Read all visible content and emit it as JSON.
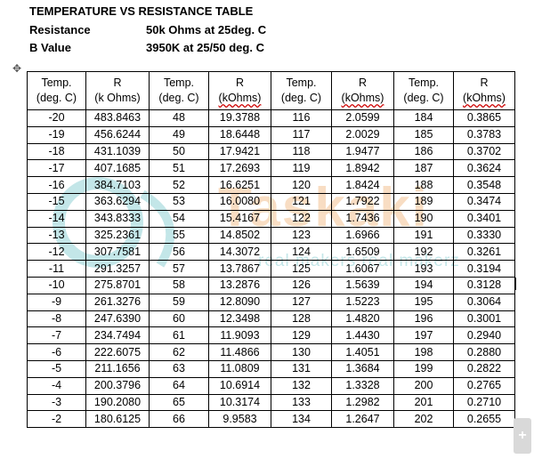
{
  "header": {
    "title": "TEMPERATURE VS RESISTANCE TABLE",
    "resistance_label": "Resistance",
    "resistance_value": "50k Ohms at 25deg. C",
    "bvalue_label": "B Value",
    "bvalue_value": "3950K at 25/50 deg. C"
  },
  "table": {
    "headers": [
      {
        "top": "Temp.",
        "bottom": "(deg. C)"
      },
      {
        "top": "R",
        "bottom": "(k Ohms)"
      },
      {
        "top": "Temp.",
        "bottom": "(deg. C)"
      },
      {
        "top": "R",
        "bottom": "(kOhms)"
      },
      {
        "top": "Temp.",
        "bottom": "(deg. C)"
      },
      {
        "top": "R",
        "bottom": "(kOhms)"
      },
      {
        "top": "Temp.",
        "bottom": "(deg. C)"
      },
      {
        "top": "R",
        "bottom": "(kOhms)"
      }
    ],
    "rows": [
      [
        "-20",
        "483.8463",
        "48",
        "19.3788",
        "116",
        "2.0599",
        "184",
        "0.3865"
      ],
      [
        "-19",
        "456.6244",
        "49",
        "18.6448",
        "117",
        "2.0029",
        "185",
        "0.3783"
      ],
      [
        "-18",
        "431.1039",
        "50",
        "17.9421",
        "118",
        "1.9477",
        "186",
        "0.3702"
      ],
      [
        "-17",
        "407.1685",
        "51",
        "17.2693",
        "119",
        "1.8942",
        "187",
        "0.3624"
      ],
      [
        "-16",
        "384.7103",
        "52",
        "16.6251",
        "120",
        "1.8424",
        "188",
        "0.3548"
      ],
      [
        "-15",
        "363.6294",
        "53",
        "16.0080",
        "121",
        "1.7922",
        "189",
        "0.3474"
      ],
      [
        "-14",
        "343.8333",
        "54",
        "15.4167",
        "122",
        "1.7436",
        "190",
        "0.3401"
      ],
      [
        "-13",
        "325.2361",
        "55",
        "14.8502",
        "123",
        "1.6966",
        "191",
        "0.3330"
      ],
      [
        "-12",
        "307.7581",
        "56",
        "14.3072",
        "124",
        "1.6509",
        "192",
        "0.3261"
      ],
      [
        "-11",
        "291.3257",
        "57",
        "13.7867",
        "125",
        "1.6067",
        "193",
        "0.3194"
      ],
      [
        "-10",
        "275.8701",
        "58",
        "13.2876",
        "126",
        "1.5639",
        "194",
        "0.3128"
      ],
      [
        "-9",
        "261.3276",
        "59",
        "12.8090",
        "127",
        "1.5223",
        "195",
        "0.3064"
      ],
      [
        "-8",
        "247.6390",
        "60",
        "12.3498",
        "128",
        "1.4820",
        "196",
        "0.3001"
      ],
      [
        "-7",
        "234.7494",
        "61",
        "11.9093",
        "129",
        "1.4430",
        "197",
        "0.2940"
      ],
      [
        "-6",
        "222.6075",
        "62",
        "11.4866",
        "130",
        "1.4051",
        "198",
        "0.2880"
      ],
      [
        "-5",
        "211.1656",
        "63",
        "11.0809",
        "131",
        "1.3684",
        "199",
        "0.2822"
      ],
      [
        "-4",
        "200.3796",
        "64",
        "10.6914",
        "132",
        "1.3328",
        "200",
        "0.2765"
      ],
      [
        "-3",
        "190.2080",
        "65",
        "10.3174",
        "133",
        "1.2982",
        "201",
        "0.2710"
      ],
      [
        "-2",
        "180.6125",
        "66",
        "9.9583",
        "134",
        "1.2647",
        "202",
        "0.2655"
      ]
    ]
  },
  "watermark": {
    "brand": "Taskaki",
    "tagline": "real makers real makerz"
  },
  "icons": {
    "move_handle": "move-arrows-icon",
    "expand": "plus-icon"
  }
}
